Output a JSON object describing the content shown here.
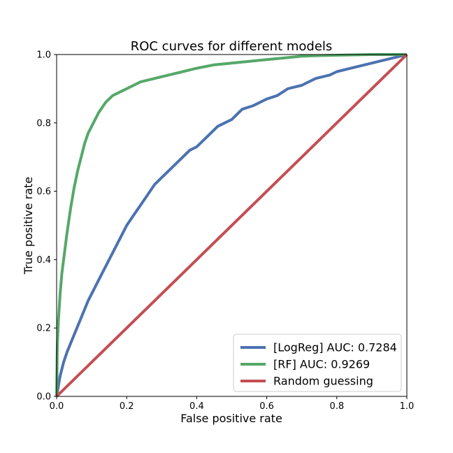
{
  "chart_data": {
    "type": "line",
    "title": "ROC curves for different models",
    "xlabel": "False positive rate",
    "ylabel": "True positive rate",
    "xlim": [
      0,
      1
    ],
    "ylim": [
      0,
      1
    ],
    "xticks": [
      "0.0",
      "0.2",
      "0.4",
      "0.6",
      "0.8",
      "1.0"
    ],
    "yticks": [
      "0.0",
      "0.2",
      "0.4",
      "0.6",
      "0.8",
      "1.0"
    ],
    "grid": false,
    "legend_position": "bottom-right",
    "series": [
      {
        "name": "[LogReg] AUC: 0.7284",
        "color": "#4c72b0",
        "x": [
          0,
          0.01,
          0.02,
          0.03,
          0.05,
          0.07,
          0.09,
          0.1,
          0.12,
          0.14,
          0.16,
          0.18,
          0.2,
          0.22,
          0.24,
          0.26,
          0.28,
          0.3,
          0.32,
          0.35,
          0.38,
          0.4,
          0.43,
          0.46,
          0.5,
          0.53,
          0.56,
          0.6,
          0.63,
          0.66,
          0.7,
          0.74,
          0.78,
          0.8,
          0.84,
          0.88,
          0.92,
          0.96,
          1.0
        ],
        "y": [
          0,
          0.06,
          0.1,
          0.13,
          0.18,
          0.23,
          0.28,
          0.3,
          0.34,
          0.38,
          0.42,
          0.46,
          0.5,
          0.53,
          0.56,
          0.59,
          0.62,
          0.64,
          0.66,
          0.69,
          0.72,
          0.73,
          0.76,
          0.79,
          0.81,
          0.84,
          0.85,
          0.87,
          0.88,
          0.9,
          0.91,
          0.93,
          0.94,
          0.95,
          0.96,
          0.97,
          0.98,
          0.99,
          1.0
        ]
      },
      {
        "name": "[RF] AUC: 0.9269",
        "color": "#55a868",
        "x": [
          0,
          0.002,
          0.005,
          0.01,
          0.015,
          0.02,
          0.03,
          0.04,
          0.05,
          0.06,
          0.07,
          0.08,
          0.09,
          0.1,
          0.12,
          0.14,
          0.16,
          0.18,
          0.2,
          0.24,
          0.28,
          0.32,
          0.36,
          0.4,
          0.45,
          0.5,
          0.55,
          0.6,
          0.65,
          0.7,
          0.75,
          0.8,
          0.85,
          0.9,
          0.95,
          1.0
        ],
        "y": [
          0,
          0.15,
          0.22,
          0.3,
          0.36,
          0.4,
          0.48,
          0.55,
          0.61,
          0.66,
          0.7,
          0.74,
          0.77,
          0.79,
          0.83,
          0.86,
          0.88,
          0.89,
          0.9,
          0.92,
          0.93,
          0.94,
          0.95,
          0.96,
          0.97,
          0.975,
          0.98,
          0.985,
          0.99,
          0.995,
          0.997,
          0.998,
          0.999,
          1.0,
          1.0,
          1.0
        ]
      },
      {
        "name": "Random guessing",
        "color": "#c44e52",
        "x": [
          0,
          1
        ],
        "y": [
          0,
          1
        ]
      }
    ]
  }
}
